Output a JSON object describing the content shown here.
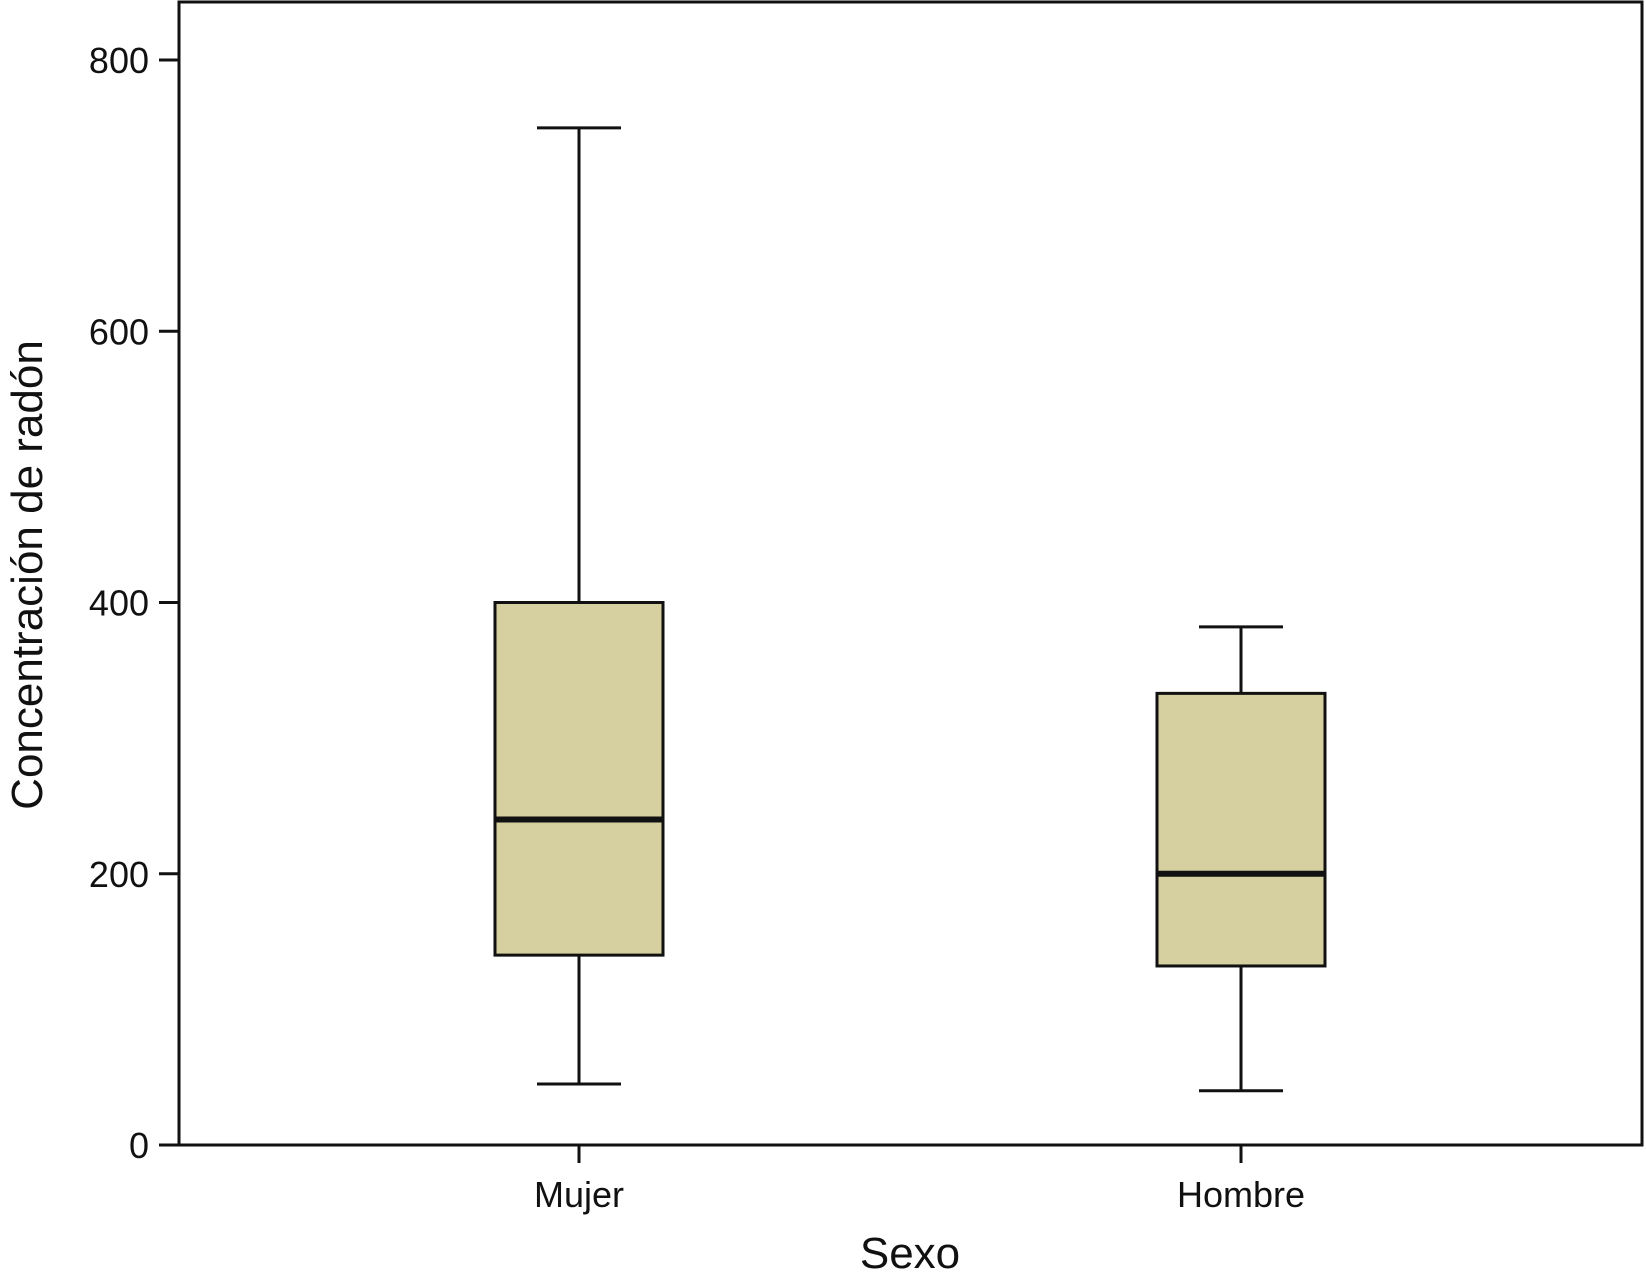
{
  "chart_data": {
    "type": "boxplot",
    "title": "",
    "xlabel": "Sexo",
    "ylabel": "Concentración de radón",
    "ylim": [
      0,
      850
    ],
    "yticks": [
      0,
      200,
      400,
      600,
      800
    ],
    "grid": false,
    "categories": [
      "Mujer",
      "Hombre"
    ],
    "boxes": [
      {
        "category": "Mujer",
        "whisker_low": 45,
        "q1": 140,
        "median": 240,
        "q3": 400,
        "whisker_high": 750
      },
      {
        "category": "Hombre",
        "whisker_low": 40,
        "q1": 132,
        "median": 200,
        "q3": 333,
        "whisker_high": 382
      }
    ],
    "colors": {
      "box_fill": "#d6cf9f",
      "line": "#111111",
      "background": "#ffffff"
    }
  }
}
